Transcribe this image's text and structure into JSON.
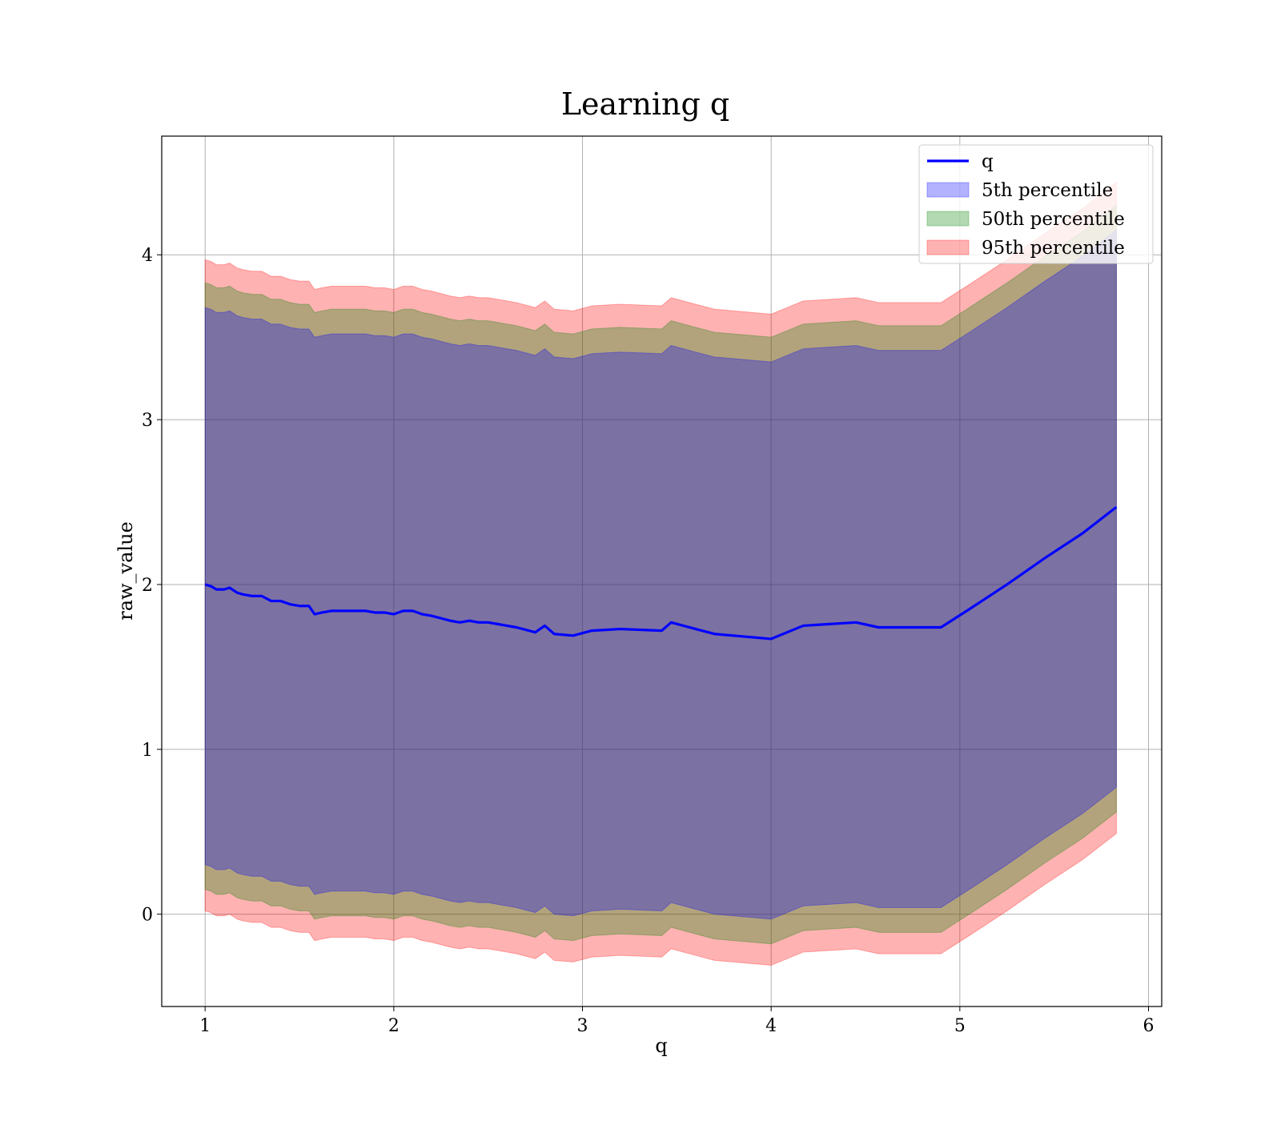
{
  "chart_data": {
    "type": "line",
    "title": "Learning q",
    "xlabel": "q",
    "ylabel": "raw_value",
    "xlim": [
      0.77,
      6.07
    ],
    "ylim": [
      -0.56,
      4.72
    ],
    "xticks": [
      1,
      2,
      3,
      4,
      5,
      6
    ],
    "yticks": [
      0,
      1,
      2,
      3,
      4
    ],
    "grid": true,
    "legend_position": "top-right",
    "x": [
      1.0,
      1.03,
      1.06,
      1.1,
      1.13,
      1.17,
      1.2,
      1.25,
      1.3,
      1.35,
      1.4,
      1.45,
      1.5,
      1.55,
      1.58,
      1.62,
      1.67,
      1.72,
      1.78,
      1.85,
      1.9,
      1.95,
      2.0,
      2.05,
      2.1,
      2.15,
      2.2,
      2.3,
      2.35,
      2.4,
      2.45,
      2.5,
      2.55,
      2.6,
      2.65,
      2.75,
      2.8,
      2.85,
      2.95,
      3.05,
      3.2,
      3.42,
      3.47,
      3.6,
      3.7,
      4.0,
      4.17,
      4.45,
      4.57,
      4.9,
      5.05,
      5.25,
      5.45,
      5.65,
      5.83
    ],
    "series": [
      {
        "name": "q",
        "color": "#0000ff",
        "values": [
          2.0,
          1.99,
          1.97,
          1.97,
          1.98,
          1.95,
          1.94,
          1.93,
          1.93,
          1.9,
          1.9,
          1.88,
          1.87,
          1.87,
          1.82,
          1.83,
          1.84,
          1.84,
          1.84,
          1.84,
          1.83,
          1.83,
          1.82,
          1.84,
          1.84,
          1.82,
          1.81,
          1.78,
          1.77,
          1.78,
          1.77,
          1.77,
          1.76,
          1.75,
          1.74,
          1.71,
          1.75,
          1.7,
          1.69,
          1.72,
          1.73,
          1.72,
          1.77,
          1.73,
          1.7,
          1.67,
          1.75,
          1.77,
          1.74,
          1.74,
          1.85,
          2.0,
          2.16,
          2.31,
          2.47
        ]
      },
      {
        "name": "5th percentile",
        "color": "#0000ff",
        "upper_offset": 1.68,
        "lower_offset": 1.7
      },
      {
        "name": "50th percentile",
        "color": "#008000",
        "upper_offset": 1.83,
        "lower_offset": 1.85
      },
      {
        "name": "95th percentile",
        "color": "#ff0000",
        "upper_offset": 1.97,
        "lower_offset": 1.98
      }
    ]
  }
}
